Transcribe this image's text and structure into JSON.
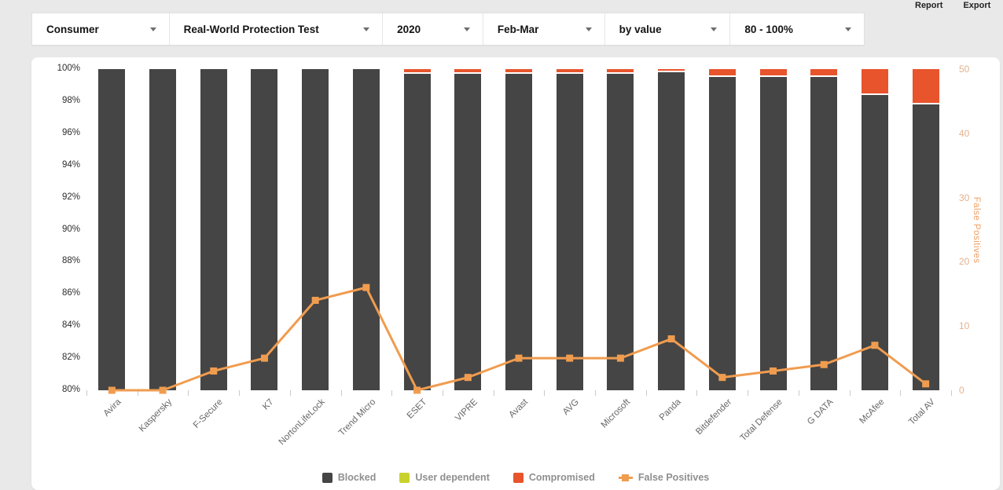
{
  "header": {
    "report_label": "Report",
    "export_label": "Export",
    "dropdowns": [
      {
        "name": "segment",
        "value": "Consumer"
      },
      {
        "name": "test-type",
        "value": "Real-World Protection Test"
      },
      {
        "name": "year",
        "value": "2020"
      },
      {
        "name": "period",
        "value": "Feb-Mar"
      },
      {
        "name": "display-mode",
        "value": "by value"
      },
      {
        "name": "range",
        "value": "80 - 100%"
      }
    ]
  },
  "chart_data": {
    "type": "bar",
    "subtype": "stacked-percent-bars-with-line-overlay",
    "title": "",
    "grid": false,
    "legend_position": "bottom",
    "categories": [
      "Avira",
      "Kaspersky",
      "F-Secure",
      "K7",
      "NortonLifeLock",
      "Trend Micro",
      "ESET",
      "VIPRE",
      "Avast",
      "AVG",
      "Microsoft",
      "Panda",
      "Bitdefender",
      "Total Defense",
      "G DATA",
      "McAfee",
      "Total AV"
    ],
    "series": [
      {
        "name": "Blocked",
        "type": "bar",
        "axis": "left",
        "color": "#454545",
        "values": [
          100,
          100,
          100,
          100,
          100,
          100,
          99.7,
          99.7,
          99.7,
          99.7,
          99.7,
          99.8,
          99.5,
          99.5,
          99.5,
          98.4,
          97.8
        ]
      },
      {
        "name": "User dependent",
        "type": "bar",
        "axis": "left",
        "color": "#c9d22d",
        "values": [
          0,
          0,
          0,
          0,
          0,
          0,
          0,
          0,
          0,
          0,
          0,
          0,
          0,
          0,
          0,
          0,
          0
        ]
      },
      {
        "name": "Compromised",
        "type": "bar",
        "axis": "left",
        "color": "#e8542c",
        "values": [
          0,
          0,
          0,
          0,
          0,
          0,
          0.3,
          0.3,
          0.3,
          0.3,
          0.3,
          0.2,
          0.5,
          0.5,
          0.5,
          1.6,
          2.2
        ]
      },
      {
        "name": "False Positives",
        "type": "line",
        "axis": "right",
        "color": "#f09c4f",
        "values": [
          0,
          0,
          3,
          5,
          14,
          16,
          0,
          2,
          5,
          5,
          5,
          8,
          2,
          3,
          4,
          7,
          1
        ]
      }
    ],
    "left_axis": {
      "min": 80,
      "max": 100,
      "tick_step": 2,
      "tick_suffix": "%",
      "labels": [
        "100%",
        "98%",
        "96%",
        "94%",
        "92%",
        "90%",
        "88%",
        "86%",
        "84%",
        "82%",
        "80%"
      ]
    },
    "right_axis": {
      "min": 0,
      "max": 50,
      "tick_step": 10,
      "title": "False Positives",
      "labels": [
        "50",
        "40",
        "30",
        "20",
        "10",
        "0"
      ]
    }
  }
}
